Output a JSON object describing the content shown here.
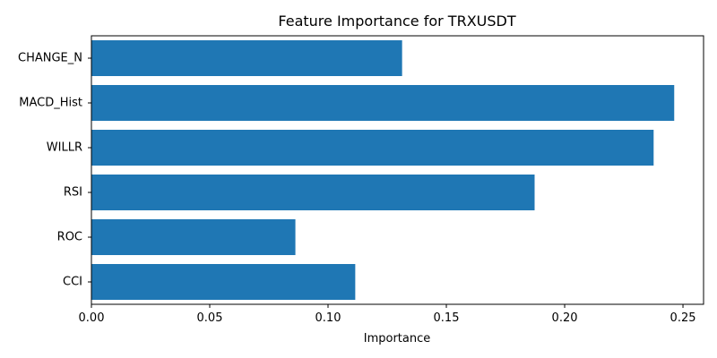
{
  "chart_data": {
    "type": "bar",
    "orientation": "horizontal",
    "title": "Feature Importance for TRXUSDT",
    "xlabel": "Importance",
    "ylabel": "",
    "categories": [
      "CHANGE_N",
      "MACD_Hist",
      "WILLR",
      "RSI",
      "ROC",
      "CCI"
    ],
    "values": [
      0.1313,
      0.2463,
      0.2376,
      0.1873,
      0.0862,
      0.1115
    ],
    "xlim": [
      0,
      0.2587
    ],
    "xticks": [
      0.0,
      0.05,
      0.1,
      0.15,
      0.2,
      0.25
    ],
    "xtick_labels": [
      "0.00",
      "0.05",
      "0.10",
      "0.15",
      "0.20",
      "0.25"
    ],
    "bar_color": "#1f77b4",
    "grid": false,
    "legend": "none"
  }
}
